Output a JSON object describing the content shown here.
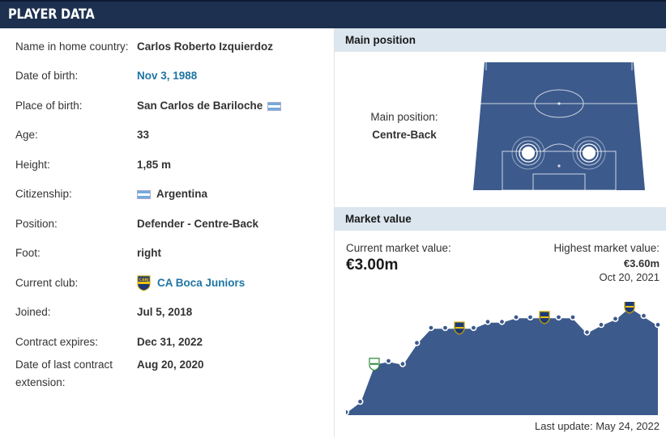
{
  "header": {
    "title": "PLAYER DATA"
  },
  "player_data": [
    {
      "label": "Name in home country:",
      "value": "Carlos Roberto Izquierdoz"
    },
    {
      "label": "Date of birth:",
      "value": "Nov 3, 1988"
    },
    {
      "label": "Place of birth:",
      "value": "San Carlos de Bariloche"
    },
    {
      "label": "Age:",
      "value": "33"
    },
    {
      "label": "Height:",
      "value": "1,85 m"
    },
    {
      "label": "Citizenship:",
      "value": "Argentina"
    },
    {
      "label": "Position:",
      "value": "Defender - Centre-Back"
    },
    {
      "label": "Foot:",
      "value": "right"
    },
    {
      "label": "Current club:",
      "value": "CA Boca Juniors"
    },
    {
      "label": "Joined:",
      "value": "Jul 5, 2018"
    },
    {
      "label": "Contract expires:",
      "value": "Dec 31, 2022"
    },
    {
      "label": "Date of last contract extension:",
      "value": "Aug 20, 2020"
    }
  ],
  "main_position": {
    "heading": "Main position",
    "label": "Main position:",
    "value": "Centre-Back"
  },
  "market_value": {
    "heading": "Market value",
    "current_label": "Current market value:",
    "current_value": "€3.00m",
    "highest_label": "Highest market value:",
    "highest_value": "€3.60m",
    "highest_date": "Oct 20, 2021",
    "last_update": "Last update: May 24, 2022"
  },
  "colors": {
    "header_bg": "#1d3050",
    "section_head_bg": "#dbe6ef",
    "link": "#1d75a3",
    "pitch": "#3c5a8c",
    "chart_fill": "#3c5a8c"
  },
  "chart_data": {
    "type": "area",
    "title": "",
    "xlabel": "",
    "ylabel": "",
    "ylim": [
      0,
      3.6
    ],
    "series": [
      {
        "values": [
          0.1,
          0.45,
          1.7,
          1.8,
          1.7,
          2.4,
          2.9,
          2.9,
          2.9,
          2.9,
          3.1,
          3.1,
          3.25,
          3.25,
          3.25,
          3.25,
          3.25,
          2.75,
          3.0,
          3.2,
          3.6,
          3.3,
          3.0
        ]
      }
    ],
    "club_markers": [
      2,
      8,
      14,
      20
    ]
  }
}
